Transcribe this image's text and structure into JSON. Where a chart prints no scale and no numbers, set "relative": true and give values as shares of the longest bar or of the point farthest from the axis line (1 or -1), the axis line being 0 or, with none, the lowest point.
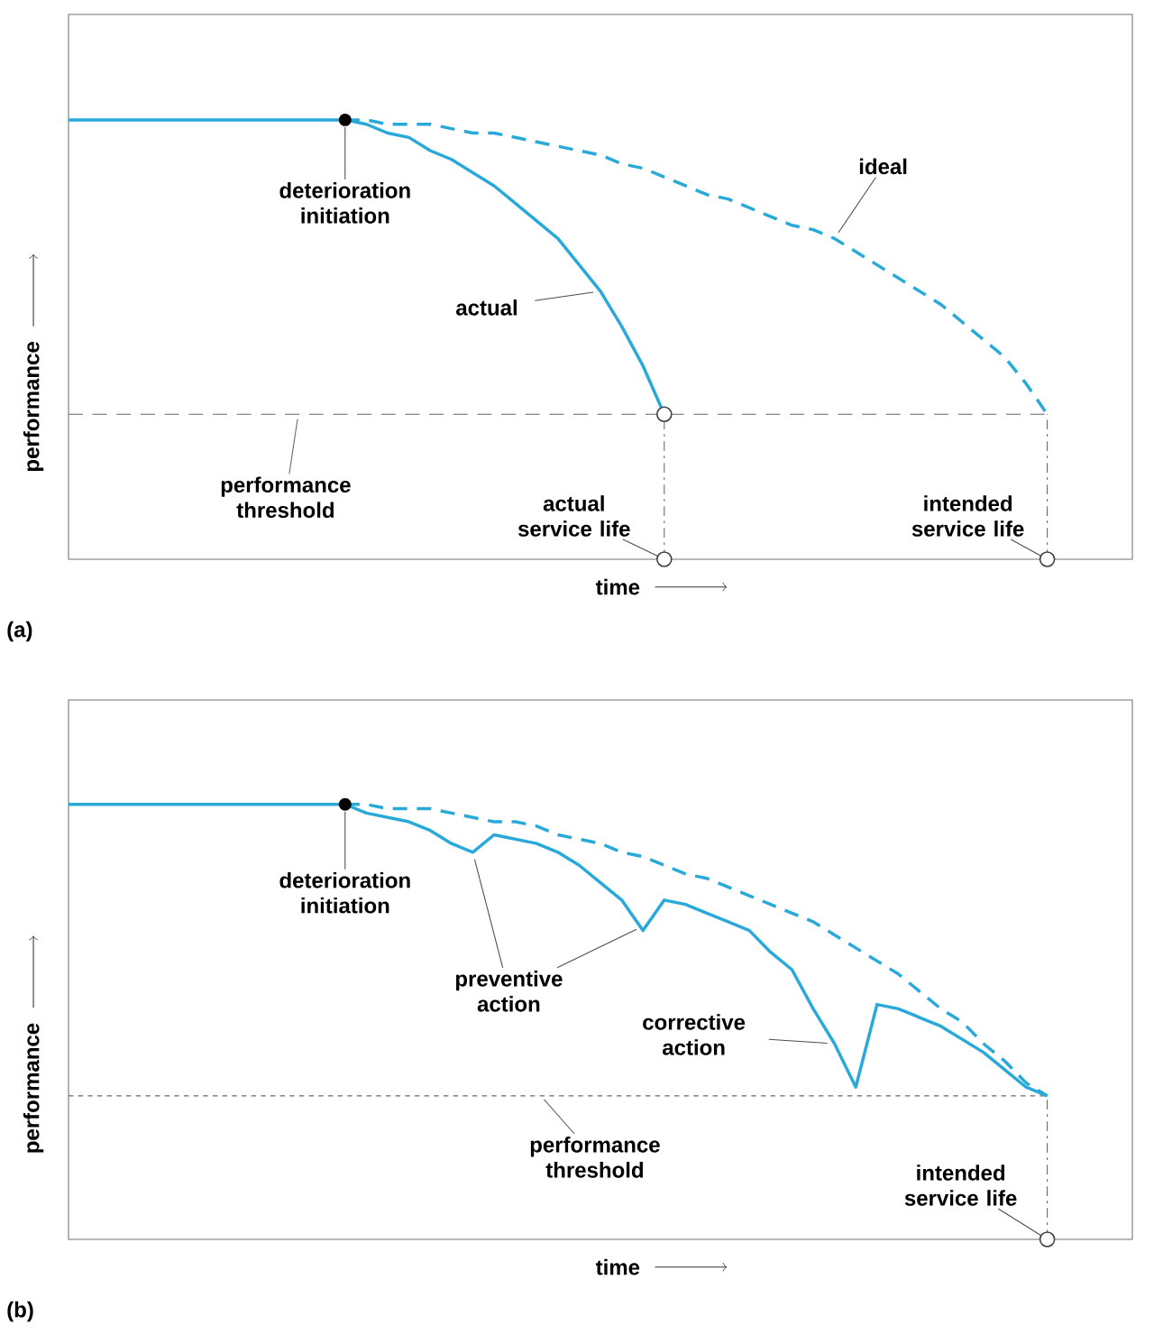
{
  "chart_data": [
    {
      "type": "line",
      "title": "(a)",
      "xlabel": "time",
      "ylabel": "performance",
      "relative": true,
      "categories": [
        null,
        null,
        null,
        null,
        null,
        null,
        null,
        null,
        null,
        null,
        null,
        null,
        null,
        null,
        null,
        null,
        null,
        null,
        null,
        null,
        null,
        null,
        null,
        null,
        null,
        null,
        null,
        null,
        null,
        null,
        null,
        null,
        null,
        null,
        null,
        null,
        null,
        null,
        null,
        null,
        null,
        null,
        null,
        null,
        null,
        null,
        null
      ],
      "series": [
        {
          "type": "line",
          "line_style": "dashed",
          "color": "#29a9d9",
          "values": [
            null,
            null,
            null,
            null,
            null,
            null,
            null,
            null,
            null,
            null,
            null,
            null,
            null,
            1.0,
            1.0,
            0.99,
            0.99,
            0.99,
            0.98,
            0.97,
            0.97,
            0.96,
            0.95,
            0.94,
            0.93,
            0.92,
            0.9,
            0.89,
            0.87,
            0.85,
            0.83,
            0.82,
            0.8,
            0.78,
            0.76,
            0.75,
            0.73,
            0.7,
            0.67,
            0.64,
            0.61,
            0.58,
            0.54,
            0.5,
            0.46,
            0.4,
            0.33
          ]
        },
        {
          "type": "line",
          "line_style": "solid",
          "color": "#29a9d9",
          "values": [
            1.0,
            1.0,
            1.0,
            1.0,
            1.0,
            1.0,
            1.0,
            1.0,
            1.0,
            1.0,
            1.0,
            1.0,
            1.0,
            1.0,
            0.99,
            0.97,
            0.96,
            0.93,
            0.91,
            0.88,
            0.85,
            0.81,
            0.77,
            0.73,
            0.67,
            0.61,
            0.53,
            0.44,
            0.33,
            null,
            null,
            null,
            null,
            null,
            null,
            null,
            null,
            null,
            null,
            null,
            null,
            null,
            null,
            null,
            null,
            null,
            null
          ]
        }
      ],
      "ref_lines": [
        {
          "axis": "y",
          "value": 0.33,
          "label": "performance threshold",
          "line_style": "dashed"
        }
      ],
      "annotations": [
        {
          "text": "deterioration initiation",
          "y": 1.0
        },
        "actual",
        "ideal",
        "actual service life",
        "intended service life"
      ]
    },
    {
      "type": "line",
      "title": "(b)",
      "xlabel": "time",
      "ylabel": "performance",
      "relative": true,
      "categories": [
        null,
        null,
        null,
        null,
        null,
        null,
        null,
        null,
        null,
        null,
        null,
        null,
        null,
        null,
        null,
        null,
        null,
        null,
        null,
        null,
        null,
        null,
        null,
        null,
        null,
        null,
        null,
        null,
        null,
        null,
        null,
        null,
        null,
        null,
        null,
        null,
        null,
        null,
        null,
        null,
        null,
        null,
        null,
        null,
        null,
        null,
        null
      ],
      "series": [
        {
          "type": "line",
          "line_style": "dashed",
          "color": "#29a9d9",
          "values": [
            null,
            null,
            null,
            null,
            null,
            null,
            null,
            null,
            null,
            null,
            null,
            null,
            null,
            1.0,
            1.0,
            0.99,
            0.99,
            0.99,
            0.98,
            0.97,
            0.96,
            0.96,
            0.95,
            0.93,
            0.92,
            0.91,
            0.89,
            0.88,
            0.86,
            0.84,
            0.83,
            0.81,
            0.79,
            0.77,
            0.75,
            0.73,
            0.7,
            0.67,
            0.64,
            0.61,
            0.57,
            0.53,
            0.5,
            0.45,
            0.41,
            0.36,
            0.33
          ]
        },
        {
          "type": "line",
          "line_style": "solid",
          "color": "#29a9d9",
          "values": [
            1.0,
            1.0,
            1.0,
            1.0,
            1.0,
            1.0,
            1.0,
            1.0,
            1.0,
            1.0,
            1.0,
            1.0,
            1.0,
            1.0,
            0.98,
            0.97,
            0.96,
            0.94,
            0.91,
            0.89,
            0.93,
            0.92,
            0.91,
            0.89,
            0.86,
            0.82,
            0.78,
            0.71,
            0.78,
            0.77,
            0.75,
            0.73,
            0.71,
            0.66,
            0.62,
            0.53,
            0.45,
            0.35,
            0.54,
            0.53,
            0.51,
            0.49,
            0.46,
            0.43,
            0.39,
            0.35,
            0.33
          ]
        }
      ],
      "ref_lines": [
        {
          "axis": "y",
          "value": 0.33,
          "label": "performance threshold",
          "line_style": "dotted"
        }
      ],
      "annotations": [
        {
          "text": "deterioration initiation",
          "y": 1.0
        },
        "preventive action",
        "corrective action",
        "intended service life"
      ]
    }
  ]
}
